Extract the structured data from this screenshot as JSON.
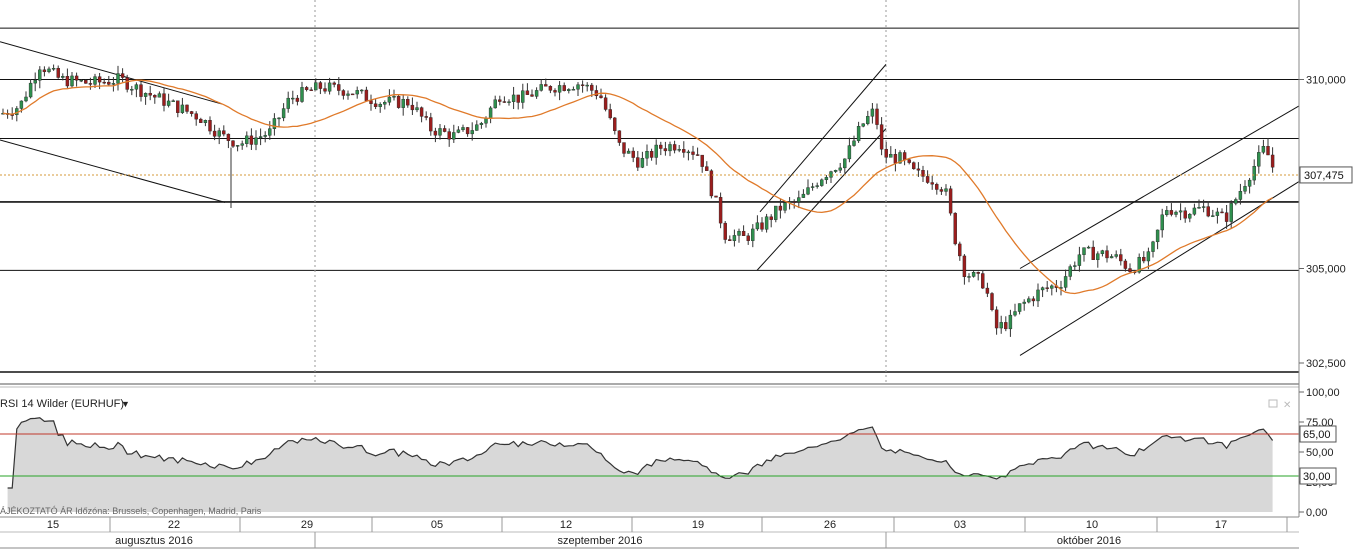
{
  "colors": {
    "up": "#2f8f4e",
    "down": "#9b1d1d",
    "ma": "#e07a2a",
    "rsi_line": "#333333",
    "rsi_fill": "#d8d8d8",
    "rsi_upper": "#c0392b",
    "rsi_lower": "#27a327",
    "grid": "#9a9a9a",
    "current": "#d69a3a"
  },
  "chart_data": [
    {
      "type": "candlestick",
      "symbol": "EURHUF",
      "y_ticks": [
        "310,000",
        "305,000",
        "302,500"
      ],
      "ylim": [
        302.0,
        312.0
      ],
      "current_price_label": "307,475",
      "current_price": 307.475,
      "horizontal_levels": [
        311.36,
        310.0,
        308.44,
        306.76,
        304.95
      ],
      "x_day_labels": [
        "15",
        "22",
        "29",
        "05",
        "12",
        "19",
        "26",
        "03",
        "10",
        "17"
      ],
      "x_month_labels": [
        "augusztus 2016",
        "szeptember 2016",
        "október 2016"
      ],
      "moving_average_present": true,
      "trend_channels": 3
    },
    {
      "type": "line",
      "title": "RSI 14 Wilder (EURHUF)",
      "y_ticks": [
        "100,00",
        "75,00",
        "50,00",
        "25,00",
        "0,00"
      ],
      "ylim": [
        0,
        100
      ],
      "levels": [
        {
          "label": "65,00",
          "value": 65
        },
        {
          "label": "30,00",
          "value": 30
        }
      ]
    }
  ],
  "footer_text": "ÁJÉKOZTATÓ ÁR   Időzóna: Brussels, Copenhagen, Madrid, Paris"
}
